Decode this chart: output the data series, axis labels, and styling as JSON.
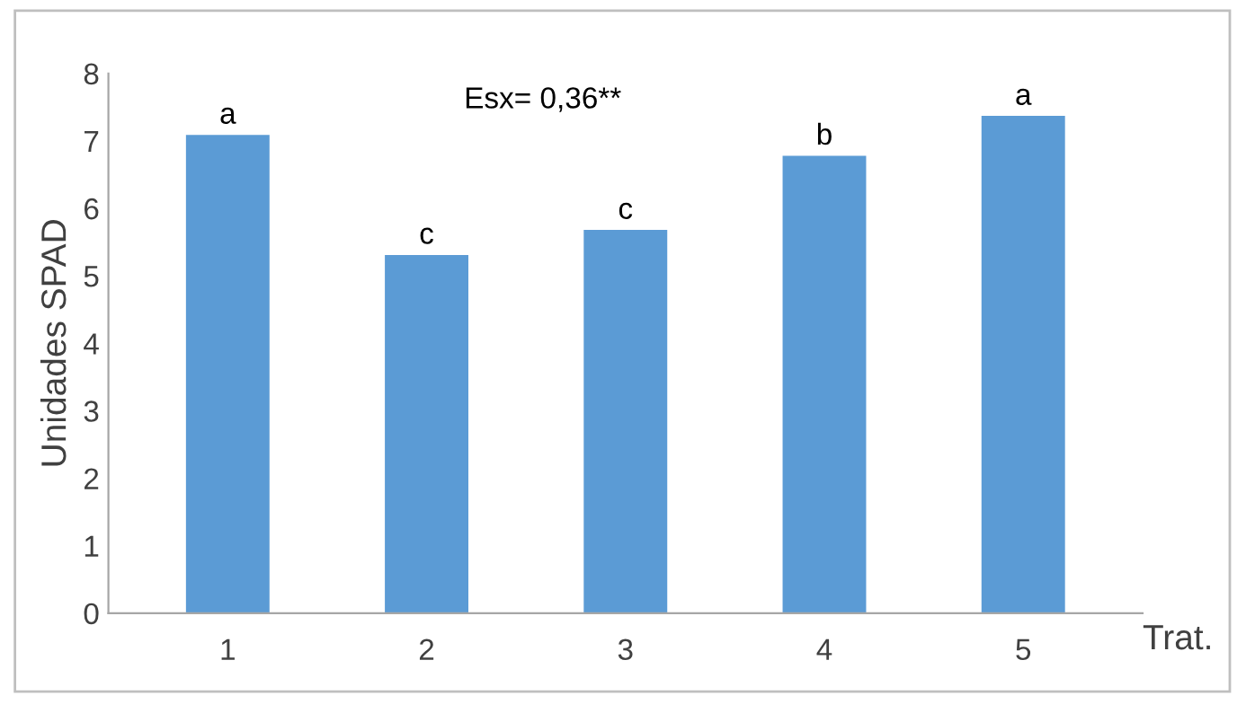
{
  "chart_data": {
    "type": "bar",
    "xlabel": "Trat.",
    "ylabel": "Unidades SPAD",
    "categories": [
      "1",
      "2",
      "3",
      "4",
      "5"
    ],
    "values": [
      7.09,
      5.31,
      5.68,
      6.78,
      7.37
    ],
    "color": "#5b9bd5",
    "ylim": [
      0,
      8
    ],
    "yticks": [
      0,
      1,
      2,
      3,
      4,
      5,
      6,
      7,
      8
    ],
    "grid": false,
    "annotations": [
      "Esx= 0,36**",
      {
        "text": "a",
        "x": "1",
        "y": 7.09
      },
      {
        "text": "c",
        "x": "2",
        "y": 5.31
      },
      {
        "text": "c",
        "x": "3",
        "y": 5.68
      },
      {
        "text": "b",
        "x": "4",
        "y": 6.78
      },
      {
        "text": "a",
        "x": "5",
        "y": 7.37
      }
    ]
  }
}
